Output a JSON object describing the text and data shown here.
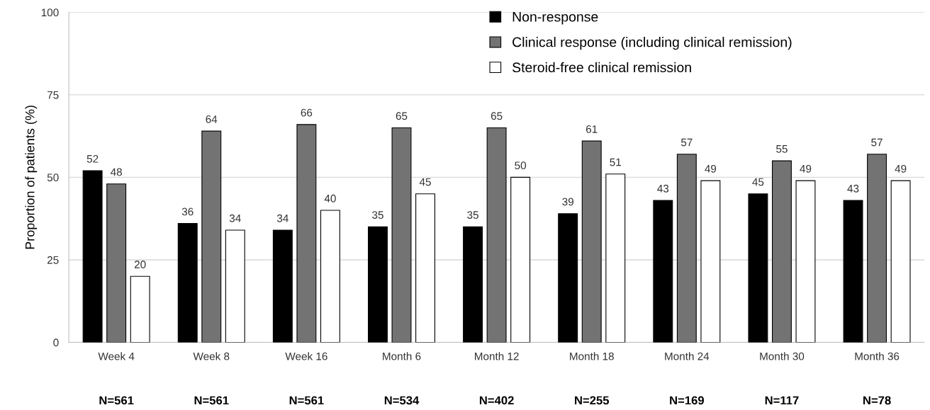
{
  "chart_data": {
    "type": "bar",
    "ylabel": "Proportion of patients (%)",
    "categories": [
      "Week 4",
      "Week 8",
      "Week 16",
      "Month 6",
      "Month 12",
      "Month 18",
      "Month 24",
      "Month 30",
      "Month 36"
    ],
    "series": [
      {
        "name": "Non-response",
        "color": "#000000",
        "values": [
          52,
          36,
          34,
          35,
          35,
          39,
          43,
          45,
          43
        ]
      },
      {
        "name": "Clinical response (including clinical remission)",
        "color": "#737373",
        "values": [
          48,
          64,
          66,
          65,
          65,
          61,
          57,
          55,
          57
        ]
      },
      {
        "name": "Steroid-free clinical remission",
        "color": "#ffffff",
        "values": [
          20,
          34,
          40,
          45,
          50,
          51,
          49,
          49,
          49
        ]
      }
    ],
    "ylim": [
      0,
      100
    ],
    "yticks": [
      0,
      25,
      50,
      75,
      100
    ],
    "grid": "y",
    "legend": "top right",
    "data_labels": true,
    "annotations": [
      "N=561",
      "N=561",
      "N=561",
      "N=534",
      "N=402",
      "N=255",
      "N=169",
      "N=117",
      "N=78"
    ]
  }
}
